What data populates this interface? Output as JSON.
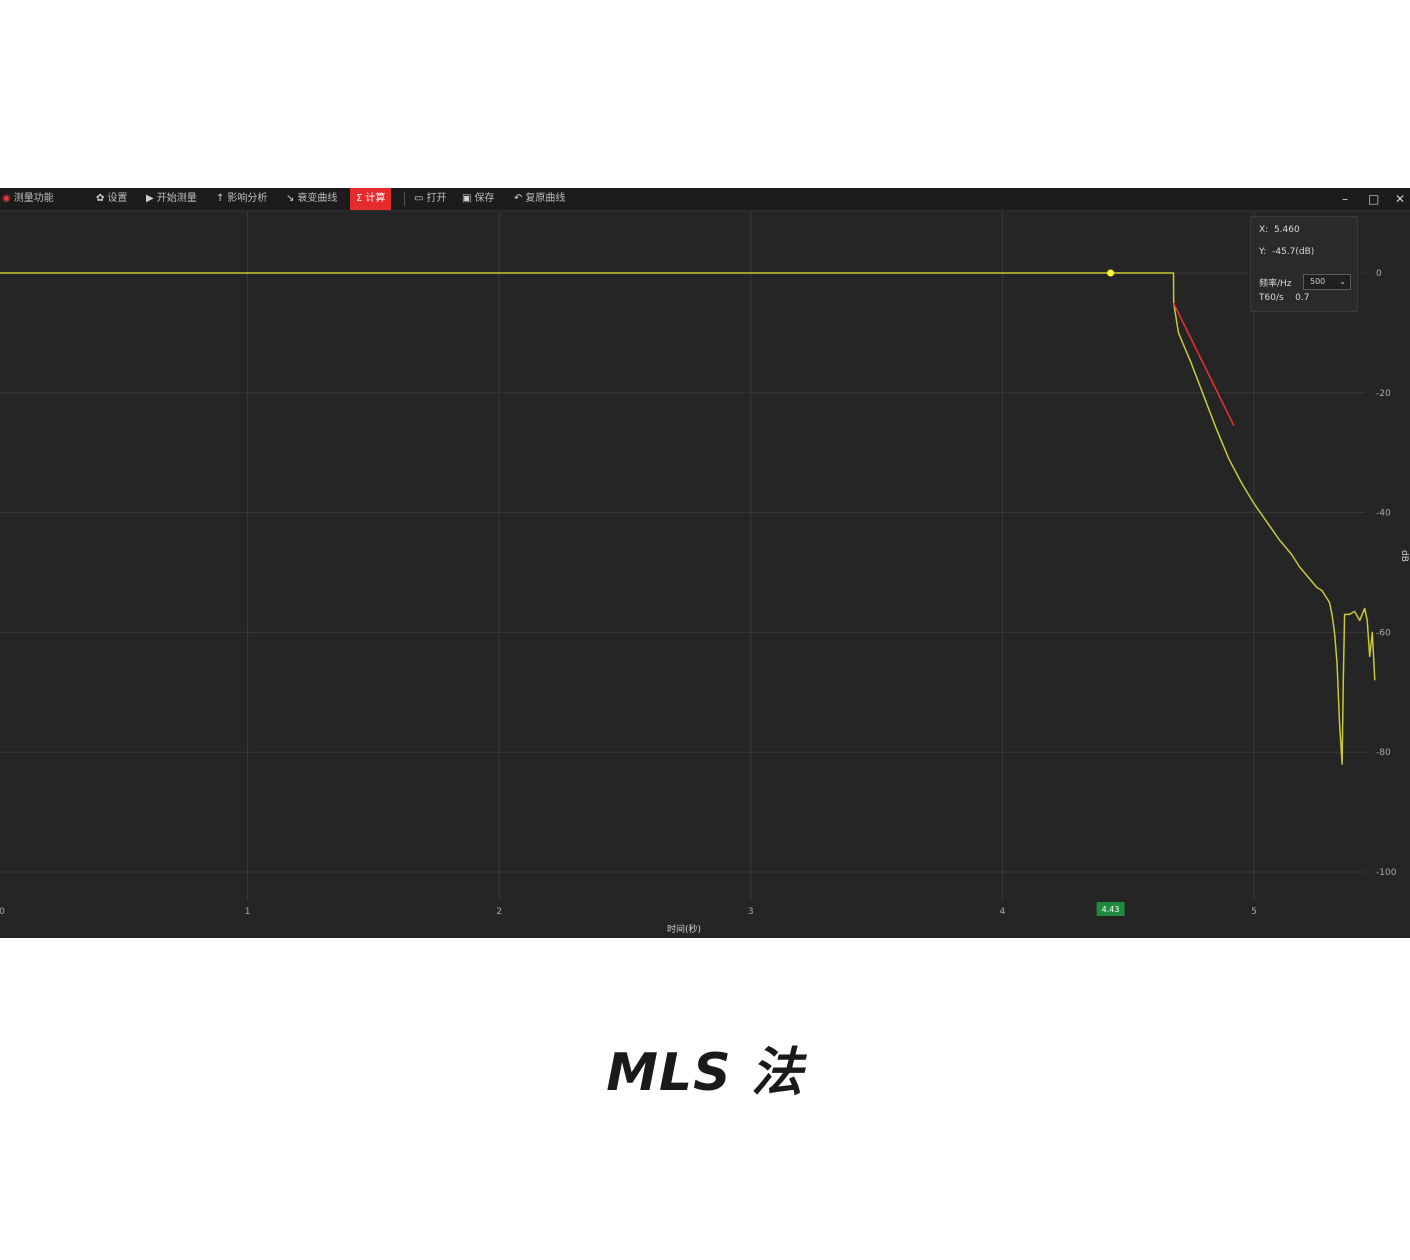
{
  "toolbar": {
    "app_label": "测量功能",
    "settings_label": "设置",
    "start_label": "开始测量",
    "import_label": "影响分析",
    "decay_label": "衰变曲线",
    "calc_label": "计算",
    "open_label": "打开",
    "save_label": "保存",
    "reset_label": "复原曲线"
  },
  "window_controls": {
    "minimize": "–",
    "maximize": "□",
    "close": "✕"
  },
  "readout": {
    "x_label": "X:",
    "x_value": "5.460",
    "y_label": "Y:",
    "y_value": "-45.7(dB)",
    "freq_label": "频率/Hz",
    "freq_value": "500",
    "t60_label": "T60/s",
    "t60_value": "0.7"
  },
  "colors": {
    "background": "#252525",
    "grid": "#383838",
    "decay_curve": "#c8c83a",
    "fit_line": "#e03030",
    "marker": "#ffff33",
    "x_marker_badge": "#1e8a3e",
    "calc_button": "#e52b2b"
  },
  "chart_data": {
    "type": "line",
    "xlabel": "时间(秒)",
    "ylabel": "dB",
    "xlim": [
      0,
      5.65
    ],
    "ylim": [
      -100,
      0
    ],
    "x_ticks": [
      0,
      1,
      2,
      3,
      4,
      5
    ],
    "y_ticks": [
      0,
      -20,
      -40,
      -60,
      -80,
      -100
    ],
    "y_tick_labels": [
      "0",
      "-20",
      "-40",
      "-60",
      "-80",
      "-100"
    ],
    "x_marker": {
      "x": 4.43,
      "label": "4.43"
    },
    "point_marker": {
      "x": 4.43,
      "y": 0
    },
    "series": [
      {
        "kind": "decay",
        "x": [
          0,
          4.68,
          4.681,
          4.7,
          4.75,
          4.8,
          4.85,
          4.9,
          4.95,
          5.0,
          5.05,
          5.1,
          5.15,
          5.18,
          5.2,
          5.23,
          5.25,
          5.27,
          5.3,
          5.31,
          5.32,
          5.33,
          5.34,
          5.35,
          5.355,
          5.36,
          5.38,
          5.4,
          5.42,
          5.44,
          5.45,
          5.46,
          5.47,
          5.48
        ],
        "y": [
          0,
          0,
          -5,
          -10,
          -15,
          -20.5,
          -26,
          -31,
          -35,
          -38.5,
          -41.5,
          -44.5,
          -47,
          -49,
          -50,
          -51.5,
          -52.5,
          -53,
          -55,
          -57,
          -60,
          -65,
          -75,
          -82,
          -68,
          -57,
          -57,
          -56.5,
          -58,
          -56,
          -58,
          -64,
          -60,
          -68
        ]
      },
      {
        "kind": "fit",
        "x": [
          4.68,
          4.92
        ],
        "y": [
          -5,
          -25.5
        ]
      }
    ]
  },
  "caption": "MLS 法"
}
